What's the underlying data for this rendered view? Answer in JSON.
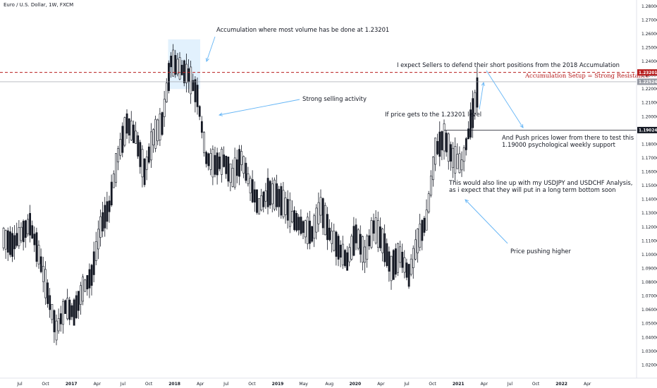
{
  "header": {
    "symbol": "Euro / U.S. Dollar, 1W, FXCM"
  },
  "chart_data": {
    "type": "candlestick",
    "title": "",
    "ylim": [
      1.0105,
      1.2845
    ],
    "ytick_labels": [
      "1.28000",
      "1.27000",
      "1.26000",
      "1.25000",
      "1.24000",
      "1.23000",
      "1.22000",
      "1.21000",
      "1.20000",
      "1.19000",
      "1.18000",
      "1.17000",
      "1.16000",
      "1.15000",
      "1.14000",
      "1.13000",
      "1.12000",
      "1.11000",
      "1.10000",
      "1.09000",
      "1.08000",
      "1.07000",
      "1.06000",
      "1.05000",
      "1.04000",
      "1.03000",
      "1.02000"
    ],
    "xtick_labels": [
      "Jul",
      "Oct",
      "2017",
      "Apr",
      "Jul",
      "Oct",
      "2018",
      "Apr",
      "Jul",
      "Oct",
      "2019",
      "May",
      "Aug",
      "2020",
      "Apr",
      "Jul",
      "Oct",
      "2021",
      "Apr",
      "Jul",
      "Oct",
      "2022",
      "Apr"
    ],
    "x_major_ticks": [
      "2017",
      "2018",
      "2019",
      "2020",
      "2021",
      "2022"
    ],
    "price_levels": [
      {
        "label": "1.23201",
        "value": 1.23201,
        "style": "dashed",
        "color": "#b71c1c"
      },
      {
        "label": "1.22524",
        "value": 1.22524,
        "style": "solid",
        "color": "#9598a1"
      },
      {
        "label": "1.19024",
        "value": 1.19024,
        "style": "solid",
        "color": "#131722"
      }
    ],
    "accumulation_zone": {
      "from": "2018-01",
      "to": "2018-04",
      "low": 1.22,
      "high": 1.256,
      "color": "#dbeefc"
    },
    "weekly_closes": [
      {
        "date": "2016-06",
        "close": 1.112
      },
      {
        "date": "2016-07",
        "close": 1.107
      },
      {
        "date": "2016-08",
        "close": 1.115
      },
      {
        "date": "2016-09",
        "close": 1.122
      },
      {
        "date": "2016-10",
        "close": 1.1
      },
      {
        "date": "2016-11",
        "close": 1.072
      },
      {
        "date": "2016-12",
        "close": 1.045
      },
      {
        "date": "2017-01",
        "close": 1.062
      },
      {
        "date": "2017-02",
        "close": 1.058
      },
      {
        "date": "2017-03",
        "close": 1.075
      },
      {
        "date": "2017-04",
        "close": 1.085
      },
      {
        "date": "2017-05",
        "close": 1.12
      },
      {
        "date": "2017-06",
        "close": 1.135
      },
      {
        "date": "2017-07",
        "close": 1.172
      },
      {
        "date": "2017-08",
        "close": 1.195
      },
      {
        "date": "2017-09",
        "close": 1.185
      },
      {
        "date": "2017-10",
        "close": 1.16
      },
      {
        "date": "2017-11",
        "close": 1.185
      },
      {
        "date": "2017-12",
        "close": 1.195
      },
      {
        "date": "2018-01",
        "close": 1.24
      },
      {
        "date": "2018-02",
        "close": 1.235
      },
      {
        "date": "2018-03",
        "close": 1.23
      },
      {
        "date": "2018-04",
        "close": 1.215
      },
      {
        "date": "2018-05",
        "close": 1.17
      },
      {
        "date": "2018-06",
        "close": 1.165
      },
      {
        "date": "2018-07",
        "close": 1.168
      },
      {
        "date": "2018-08",
        "close": 1.156
      },
      {
        "date": "2018-09",
        "close": 1.17
      },
      {
        "date": "2018-10",
        "close": 1.15
      },
      {
        "date": "2018-11",
        "close": 1.135
      },
      {
        "date": "2018-12",
        "close": 1.145
      },
      {
        "date": "2019-01",
        "close": 1.143
      },
      {
        "date": "2019-02",
        "close": 1.135
      },
      {
        "date": "2019-03",
        "close": 1.125
      },
      {
        "date": "2019-04",
        "close": 1.12
      },
      {
        "date": "2019-05",
        "close": 1.115
      },
      {
        "date": "2019-06",
        "close": 1.135
      },
      {
        "date": "2019-07",
        "close": 1.115
      },
      {
        "date": "2019-08",
        "close": 1.105
      },
      {
        "date": "2019-09",
        "close": 1.095
      },
      {
        "date": "2019-10",
        "close": 1.115
      },
      {
        "date": "2019-11",
        "close": 1.1
      },
      {
        "date": "2019-12",
        "close": 1.12
      },
      {
        "date": "2020-01",
        "close": 1.11
      },
      {
        "date": "2020-02",
        "close": 1.09
      },
      {
        "date": "2020-03",
        "close": 1.1
      },
      {
        "date": "2020-04",
        "close": 1.085
      },
      {
        "date": "2020-05",
        "close": 1.11
      },
      {
        "date": "2020-06",
        "close": 1.125
      },
      {
        "date": "2020-07",
        "close": 1.175
      },
      {
        "date": "2020-08",
        "close": 1.185
      },
      {
        "date": "2020-09",
        "close": 1.17
      },
      {
        "date": "2020-10",
        "close": 1.165
      },
      {
        "date": "2020-11",
        "close": 1.195
      },
      {
        "date": "2020-12",
        "close": 1.225
      }
    ]
  },
  "annotations": {
    "accumulation": "Accumulation where most volume has be done at 1.23201",
    "sellers": "I expect Sellers to defend their short positions from the 2018 Accumulation",
    "setup": "Accumulation Setup = Strong Resistance",
    "selling": "Strong selling activity",
    "if_price": "If price gets to the 1.23201 level",
    "push_1": "And Push prices lower from there to test this",
    "push_2": "1.19000 psychological weekly support",
    "line_up_1": "This would also line up with my USDJPY and USDCHF Analysis,",
    "line_up_2": "as i expect  that they will put in a long term bottom soon",
    "pushing": "Price pushing higher"
  },
  "colors": {
    "candle": "#131722",
    "resistance": "#b71c1c",
    "arrow": "#64b5f6",
    "level_grey": "#9598a1"
  }
}
